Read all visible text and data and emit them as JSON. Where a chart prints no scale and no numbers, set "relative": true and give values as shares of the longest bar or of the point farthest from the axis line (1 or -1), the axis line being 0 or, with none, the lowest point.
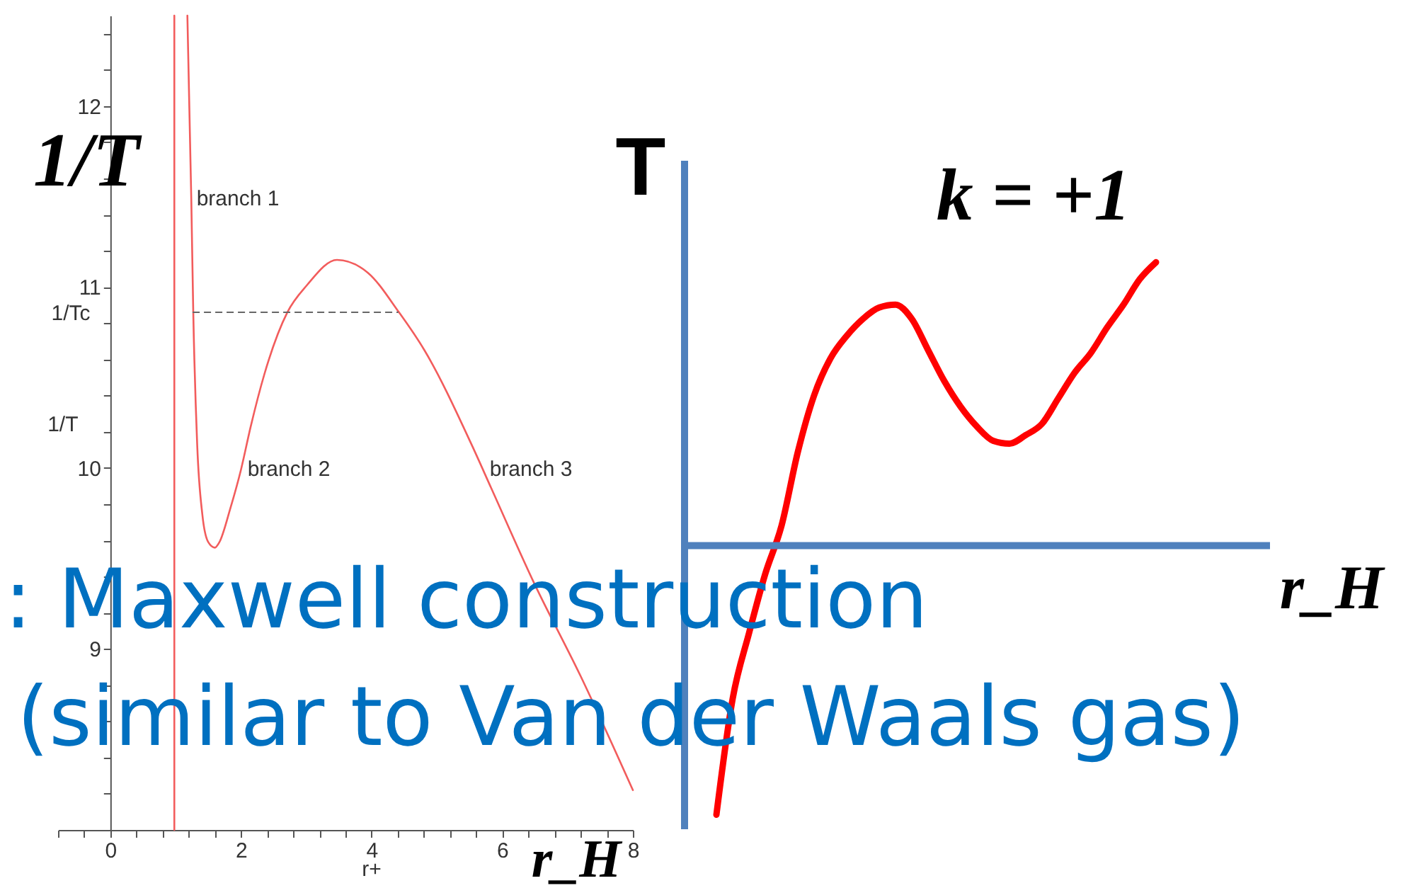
{
  "chart_data": [
    {
      "type": "line",
      "xlabel": "r+",
      "ylabel": "1/T",
      "xlim": [
        -0.8,
        8
      ],
      "ylim": [
        8,
        12.5
      ],
      "xticks": [
        {
          "value": -0.8,
          "label": null
        },
        {
          "value": -0.4,
          "label": null
        },
        0,
        {
          "value": 0.4,
          "label": null
        },
        {
          "value": 0.8,
          "label": null
        },
        {
          "value": 1.2,
          "label": null
        },
        {
          "value": 1.6,
          "label": null
        },
        2,
        {
          "value": 2.4,
          "label": null
        },
        {
          "value": 2.8,
          "label": null
        },
        {
          "value": 3.2,
          "label": null
        },
        {
          "value": 3.6,
          "label": null
        },
        4,
        {
          "value": 4.4,
          "label": null
        },
        {
          "value": 4.8,
          "label": null
        },
        {
          "value": 5.2,
          "label": null
        },
        {
          "value": 5.6,
          "label": null
        },
        6,
        {
          "value": 6.4,
          "label": null
        },
        {
          "value": 6.8,
          "label": null
        },
        {
          "value": 7.2,
          "label": null
        },
        {
          "value": 7.6,
          "label": null
        },
        8
      ],
      "yticks": [
        {
          "value": 8.2,
          "label": null
        },
        {
          "value": 8.4,
          "label": null
        },
        {
          "value": 8.6,
          "label": null
        },
        {
          "value": 8.8,
          "label": null
        },
        9,
        {
          "value": 9.2,
          "label": null
        },
        {
          "value": 9.4,
          "label": null
        },
        {
          "value": 9.6,
          "label": null
        },
        {
          "value": 9.8,
          "label": null
        },
        10,
        {
          "value": 10.2,
          "label": null
        },
        {
          "value": 10.4,
          "label": null
        },
        {
          "value": 10.6,
          "label": null
        },
        {
          "value": 10.8,
          "label": null
        },
        11,
        {
          "value": 11.2,
          "label": null
        },
        {
          "value": 11.4,
          "label": null
        },
        {
          "value": 11.6,
          "label": null
        },
        {
          "value": 11.8,
          "label": null
        },
        12,
        {
          "value": 12.2,
          "label": null
        },
        {
          "value": 12.4,
          "label": null
        }
      ],
      "series": [
        {
          "color": "#f25c5c",
          "x": [
            0.98,
            0.98
          ],
          "values": [
            8,
            12.5
          ]
        },
        {
          "color": "#f25c5c",
          "x": [
            1.18,
            1.24,
            1.27,
            1.33,
            1.41,
            1.5,
            1.6,
            1.67,
            1.84,
            2.0,
            2.15,
            2.36,
            2.71,
            3.01,
            3.47,
            3.94,
            4.42,
            4.81,
            5.53,
            5.83,
            6.48,
            7.2,
            8.0
          ],
          "values": [
            12.5,
            11.48,
            10.86,
            10.13,
            9.74,
            9.59,
            9.56,
            9.59,
            9.78,
            9.99,
            10.23,
            10.52,
            10.86,
            11.01,
            11.15,
            11.08,
            10.86,
            10.65,
            10.13,
            9.89,
            9.37,
            8.85,
            8.22
          ]
        },
        {
          "color": "#666666",
          "line_style": "dashed",
          "x": [
            1.26,
            4.41
          ],
          "values": [
            10.86,
            10.86
          ]
        }
      ],
      "annotations": [
        "branch 1",
        "branch 2",
        "branch 3",
        "1/Tc",
        "1/T",
        "r_H"
      ]
    },
    {
      "type": "line",
      "relative": true,
      "title": "k = +1",
      "xlabel": "r_H",
      "ylabel": "T",
      "categories": [
        null,
        null,
        null,
        null,
        null,
        null,
        null,
        null,
        null,
        null,
        null,
        null,
        null,
        null,
        null,
        null,
        null,
        null,
        null,
        null,
        null,
        null,
        null,
        null,
        null,
        null,
        null,
        null,
        null,
        null,
        null,
        null,
        null,
        null,
        null,
        null,
        null
      ],
      "series": [
        {
          "color": "#ff0000",
          "values": [
            null,
            null,
            -0.95,
            -0.54,
            -0.31,
            -0.1,
            0.07,
            0.33,
            0.53,
            0.66,
            0.74,
            0.8,
            0.84,
            0.85,
            0.8,
            0.69,
            0.58,
            0.49,
            0.42,
            0.37,
            0.36,
            0.39,
            0.43,
            0.52,
            0.61,
            0.68,
            0.77,
            0.85,
            0.94,
            1.0,
            null,
            null,
            null,
            null,
            null,
            null,
            null
          ]
        }
      ],
      "ref_lines": [
        {
          "axis": "y",
          "value": 0,
          "color": "#4f81bd"
        }
      ],
      "annotations": [
        ": Maxwell construction",
        "(similar to Van der Waals gas)"
      ]
    }
  ]
}
